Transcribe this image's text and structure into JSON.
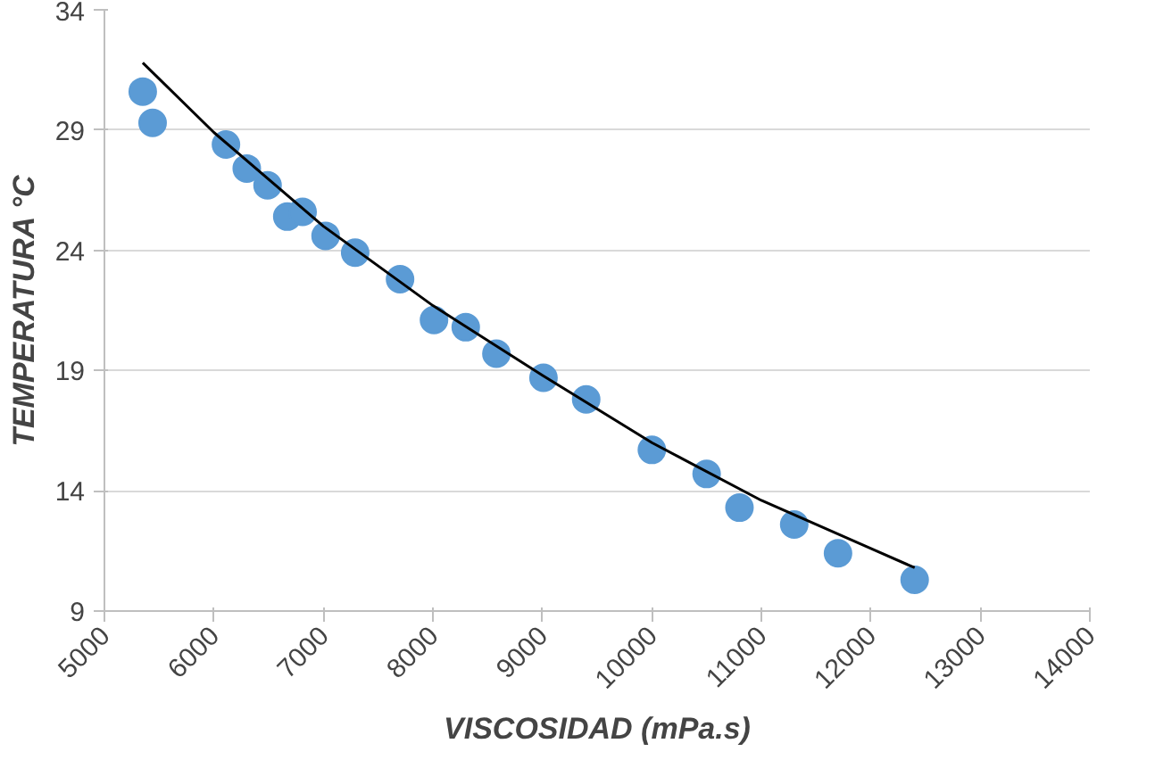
{
  "chart_data": {
    "type": "scatter",
    "xlabel": "VISCOSIDAD (mPa.s)",
    "ylabel": "TEMPERATURA °C",
    "xlim": [
      5000,
      14000
    ],
    "xticks": [
      5000,
      6000,
      7000,
      8000,
      9000,
      10000,
      11000,
      12000,
      13000,
      14000
    ],
    "ylim": [
      9,
      34
    ],
    "yticks": [
      9,
      14,
      19,
      24,
      29,
      34
    ],
    "grid": "y",
    "series": [
      {
        "marker": "circle",
        "color": "#5b9bd5",
        "x": [
          5350,
          5440,
          6110,
          6300,
          6490,
          6670,
          6810,
          7020,
          7290,
          7700,
          8010,
          8300,
          8580,
          9010,
          9400,
          10000,
          10500,
          10800,
          11300,
          11700,
          12400
        ],
        "values": [
          30.6,
          29.3,
          28.4,
          27.4,
          26.7,
          25.4,
          25.6,
          24.6,
          23.9,
          22.8,
          21.1,
          20.8,
          19.7,
          18.7,
          17.8,
          15.7,
          14.7,
          13.3,
          12.6,
          11.4,
          10.3
        ]
      },
      {
        "type": "line",
        "marker": "none",
        "color": "#000000",
        "x": [
          5350,
          6000,
          7000,
          8000,
          9000,
          10000,
          11000,
          12000,
          12400
        ],
        "values": [
          31.8,
          28.9,
          25.0,
          21.7,
          18.8,
          16.0,
          13.6,
          11.6,
          10.8
        ]
      }
    ]
  }
}
